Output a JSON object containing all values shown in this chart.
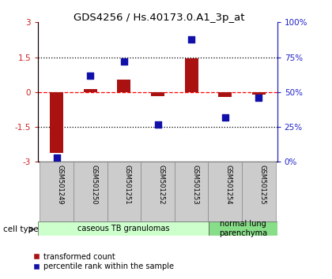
{
  "title": "GDS4256 / Hs.40173.0.A1_3p_at",
  "samples": [
    "GSM501249",
    "GSM501250",
    "GSM501251",
    "GSM501252",
    "GSM501253",
    "GSM501254",
    "GSM501255"
  ],
  "transformed_count": [
    -2.6,
    0.12,
    0.55,
    -0.18,
    1.45,
    -0.22,
    -0.1
  ],
  "percentile_rank": [
    3,
    62,
    72,
    27,
    88,
    32,
    46
  ],
  "ylim_left": [
    -3,
    3
  ],
  "ylim_right": [
    0,
    100
  ],
  "yticks_left": [
    -3,
    -1.5,
    0,
    1.5,
    3
  ],
  "yticks_right": [
    0,
    25,
    50,
    75,
    100
  ],
  "ytick_labels_left": [
    "-3",
    "-1.5",
    "0",
    "1.5",
    "3"
  ],
  "ytick_labels_right": [
    "0%",
    "25%",
    "50%",
    "75%",
    "100%"
  ],
  "hlines_dotted": [
    -1.5,
    1.5
  ],
  "bar_color": "#aa1111",
  "dot_color": "#1111aa",
  "cell_type_groups": [
    {
      "label": "caseous TB granulomas",
      "start": 0,
      "end": 5,
      "color": "#ccffcc"
    },
    {
      "label": "normal lung\nparenchyma",
      "start": 5,
      "end": 7,
      "color": "#88dd88"
    }
  ],
  "legend_bar_label": "transformed count",
  "legend_dot_label": "percentile rank within the sample",
  "cell_type_label": "cell type",
  "bg_color": "#ffffff",
  "plot_bg": "#ffffff",
  "bar_width": 0.4,
  "dot_size": 28
}
